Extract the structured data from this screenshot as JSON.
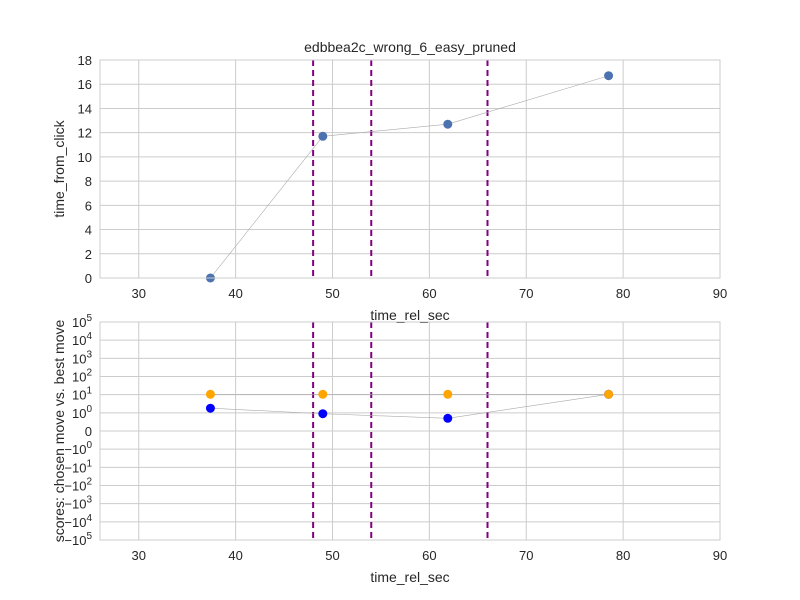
{
  "chart_data": [
    {
      "type": "line",
      "title": "edbbea2c_wrong_6_easy_pruned",
      "xlabel": "time_rel_sec",
      "ylabel": "time_from_click",
      "xlim": [
        26,
        90
      ],
      "ylim": [
        0,
        18
      ],
      "xticks": [
        "30",
        "40",
        "50",
        "60",
        "70",
        "80",
        "90"
      ],
      "yticks": [
        "0",
        "2",
        "4",
        "6",
        "8",
        "10",
        "12",
        "14",
        "16",
        "18"
      ],
      "grid": true,
      "series": [
        {
          "x": [
            37.4,
            49.0,
            61.9,
            78.5
          ],
          "y": [
            0.0,
            11.7,
            12.7,
            16.7
          ],
          "color": "#4c72b0"
        }
      ],
      "vlines": {
        "x": [
          48.0,
          54.0,
          66.0
        ],
        "color": "#800080",
        "style": "dashed"
      }
    },
    {
      "type": "line",
      "title": "",
      "xlabel": "time_rel_sec",
      "ylabel": "scores: chosen move vs. best move",
      "xlim": [
        26,
        90
      ],
      "yscale": "symlog",
      "ylim": [
        -100000,
        100000
      ],
      "xticks": [
        "30",
        "40",
        "50",
        "60",
        "70",
        "80",
        "90"
      ],
      "yticks": [
        {
          "base": "10",
          "exp": "5",
          "value": 100000
        },
        {
          "base": "10",
          "exp": "4",
          "value": 10000
        },
        {
          "base": "10",
          "exp": "3",
          "value": 1000
        },
        {
          "base": "10",
          "exp": "2",
          "value": 100
        },
        {
          "base": "10",
          "exp": "1",
          "value": 10
        },
        {
          "base": "10",
          "exp": "0",
          "value": 1
        },
        {
          "base": "0",
          "exp": "",
          "value": 0
        },
        {
          "base": "−10",
          "exp": "0",
          "value": -1
        },
        {
          "base": "−10",
          "exp": "1",
          "value": -10
        },
        {
          "base": "−10",
          "exp": "2",
          "value": -100
        },
        {
          "base": "−10",
          "exp": "3",
          "value": -1000
        },
        {
          "base": "−10",
          "exp": "4",
          "value": -10000
        },
        {
          "base": "−10",
          "exp": "5",
          "value": -100000
        }
      ],
      "grid": true,
      "series": [
        {
          "x": [
            37.4,
            49.0,
            61.9,
            78.5
          ],
          "y": [
            1.8,
            0.95,
            0.7,
            10.5
          ],
          "color": "#0000ff"
        },
        {
          "x": [
            37.4,
            49.0,
            61.9,
            78.5
          ],
          "y": [
            10.5,
            10.5,
            10.5,
            10.5
          ],
          "color": "#ffa500"
        }
      ],
      "vlines": {
        "x": [
          48.0,
          54.0,
          66.0
        ],
        "color": "#800080",
        "style": "dashed"
      }
    }
  ]
}
